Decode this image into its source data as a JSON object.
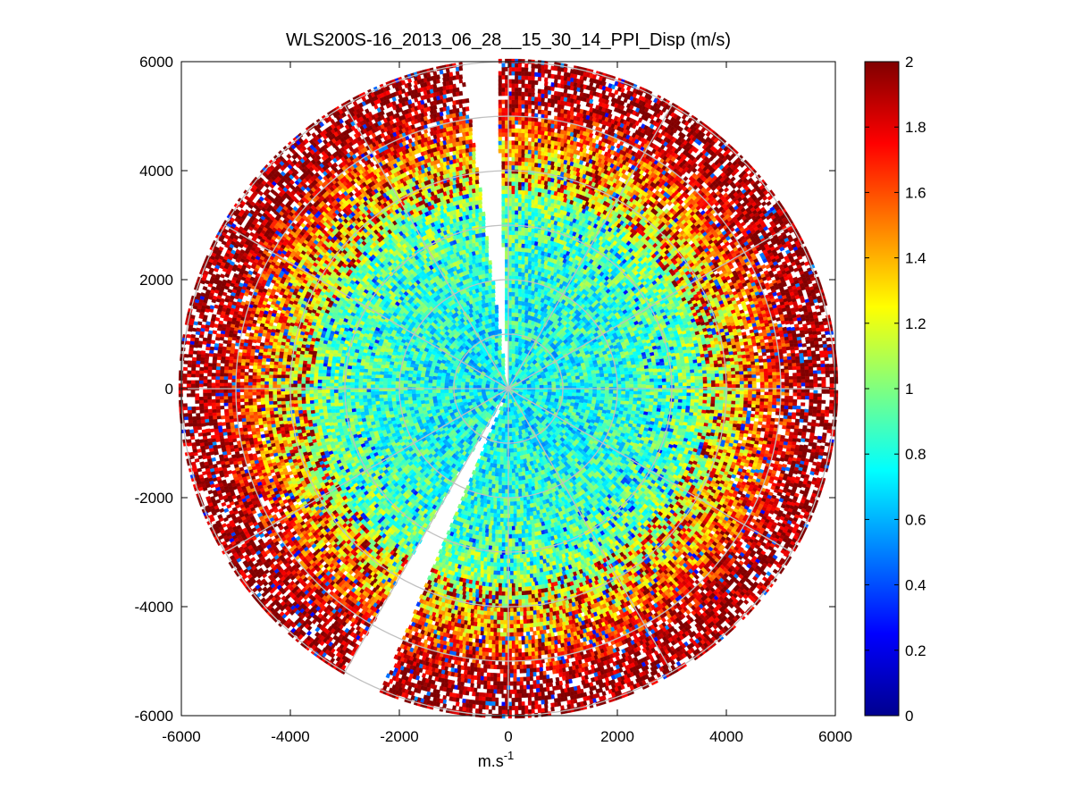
{
  "chart_data": {
    "type": "polar-heatmap",
    "title": "WLS200S-16_2013_06_28__15_30_14_PPI_Disp (m/s)",
    "xlabel": "m.s",
    "xlabel_superscript": "-1",
    "ylabel": "",
    "xlim": [
      -6000,
      6000
    ],
    "ylim": [
      -6000,
      6000
    ],
    "xticks": [
      -6000,
      -4000,
      -2000,
      0,
      2000,
      4000,
      6000
    ],
    "yticks": [
      6000,
      4000,
      2000,
      0,
      -2000,
      -4000,
      -6000
    ],
    "xtick_labels": [
      "-6000",
      "-4000",
      "-2000",
      "0",
      "2000",
      "4000",
      "6000"
    ],
    "ytick_labels": [
      "6000",
      "4000",
      "2000",
      "0",
      "-2000",
      "-4000",
      "-6000"
    ],
    "max_range": 6000,
    "range_rings": [
      1000,
      2000,
      3000,
      4000,
      5000,
      6000
    ],
    "radial_spokes_deg": [
      0,
      30,
      60,
      90,
      120,
      150,
      180,
      210,
      240,
      270,
      300,
      330
    ],
    "blocked_sectors_deg": [
      [
        -8,
        -2
      ],
      [
        203,
        210
      ]
    ],
    "colormap": "jet",
    "colorbar": {
      "range": [
        0,
        2
      ],
      "ticks": [
        0,
        0.2,
        0.4,
        0.6,
        0.8,
        1,
        1.2,
        1.4,
        1.6,
        1.8,
        2
      ],
      "tick_labels": [
        "0",
        "0.2",
        "0.4",
        "0.6",
        "0.8",
        "1",
        "1.2",
        "1.4",
        "1.6",
        "1.8",
        "2"
      ]
    },
    "value_trend_by_range": [
      {
        "range_m": 500,
        "typical_value": 0.75
      },
      {
        "range_m": 2000,
        "typical_value": 0.8
      },
      {
        "range_m": 3500,
        "typical_value": 1.0
      },
      {
        "range_m": 4500,
        "typical_value": 1.4
      },
      {
        "range_m": 5500,
        "typical_value": 2.0
      }
    ]
  }
}
